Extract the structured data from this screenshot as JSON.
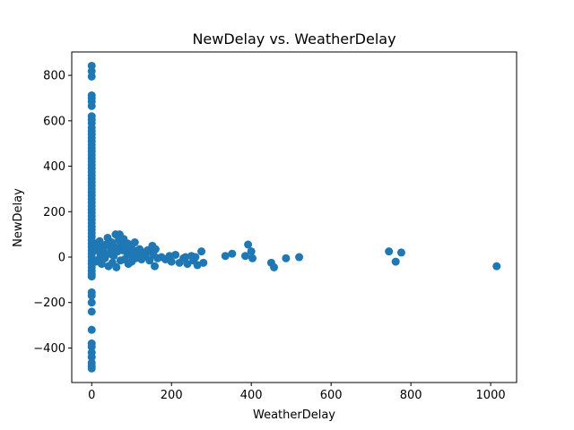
{
  "chart_data": {
    "type": "scatter",
    "title": "NewDelay vs. WeatherDelay",
    "xlabel": "WeatherDelay",
    "ylabel": "NewDelay",
    "xlim": [
      -50,
      1065
    ],
    "ylim": [
      -552,
      903
    ],
    "xticks": [
      0,
      200,
      400,
      600,
      800,
      1000
    ],
    "xtick_labels": [
      "0",
      "200",
      "400",
      "600",
      "800",
      "1000"
    ],
    "yticks": [
      -400,
      -200,
      0,
      200,
      400,
      600,
      800
    ],
    "ytick_labels": [
      "−400",
      "−200",
      "0",
      "200",
      "400",
      "600",
      "800"
    ],
    "grid": false,
    "marker_color": "#1f77b4",
    "points": [
      [
        0,
        842
      ],
      [
        0,
        818
      ],
      [
        0,
        795
      ],
      [
        0,
        712
      ],
      [
        0,
        700
      ],
      [
        0,
        685
      ],
      [
        0,
        665
      ],
      [
        0,
        620
      ],
      [
        0,
        605
      ],
      [
        0,
        590
      ],
      [
        0,
        570
      ],
      [
        0,
        555
      ],
      [
        0,
        540
      ],
      [
        0,
        525
      ],
      [
        0,
        510
      ],
      [
        0,
        495
      ],
      [
        0,
        480
      ],
      [
        0,
        465
      ],
      [
        0,
        450
      ],
      [
        0,
        435
      ],
      [
        0,
        420
      ],
      [
        0,
        405
      ],
      [
        0,
        390
      ],
      [
        0,
        375
      ],
      [
        0,
        360
      ],
      [
        0,
        345
      ],
      [
        0,
        330
      ],
      [
        0,
        315
      ],
      [
        0,
        300
      ],
      [
        0,
        285
      ],
      [
        0,
        270
      ],
      [
        0,
        255
      ],
      [
        0,
        240
      ],
      [
        0,
        225
      ],
      [
        0,
        210
      ],
      [
        0,
        195
      ],
      [
        0,
        180
      ],
      [
        0,
        165
      ],
      [
        0,
        150
      ],
      [
        0,
        135
      ],
      [
        0,
        120
      ],
      [
        0,
        105
      ],
      [
        0,
        90
      ],
      [
        0,
        75
      ],
      [
        0,
        60
      ],
      [
        0,
        45
      ],
      [
        0,
        30
      ],
      [
        0,
        15
      ],
      [
        0,
        0
      ],
      [
        0,
        -15
      ],
      [
        0,
        -30
      ],
      [
        0,
        -45
      ],
      [
        0,
        -60
      ],
      [
        0,
        -75
      ],
      [
        0,
        -85
      ],
      [
        0,
        -155
      ],
      [
        0,
        -170
      ],
      [
        0,
        -200
      ],
      [
        0,
        -240
      ],
      [
        0,
        -320
      ],
      [
        0,
        -380
      ],
      [
        0,
        -395
      ],
      [
        0,
        -420
      ],
      [
        0,
        -440
      ],
      [
        0,
        -465
      ],
      [
        0,
        -480
      ],
      [
        0,
        -490
      ],
      [
        8,
        50
      ],
      [
        10,
        -20
      ],
      [
        12,
        30
      ],
      [
        15,
        60
      ],
      [
        18,
        -10
      ],
      [
        20,
        70
      ],
      [
        22,
        10
      ],
      [
        25,
        -30
      ],
      [
        28,
        40
      ],
      [
        30,
        20
      ],
      [
        33,
        -5
      ],
      [
        36,
        55
      ],
      [
        40,
        85
      ],
      [
        42,
        -40
      ],
      [
        45,
        15
      ],
      [
        48,
        35
      ],
      [
        50,
        65
      ],
      [
        52,
        -25
      ],
      [
        55,
        5
      ],
      [
        58,
        45
      ],
      [
        60,
        100
      ],
      [
        62,
        -45
      ],
      [
        65,
        25
      ],
      [
        68,
        75
      ],
      [
        70,
        100
      ],
      [
        72,
        -15
      ],
      [
        75,
        50
      ],
      [
        78,
        30
      ],
      [
        80,
        80
      ],
      [
        82,
        -10
      ],
      [
        85,
        40
      ],
      [
        88,
        20
      ],
      [
        90,
        60
      ],
      [
        92,
        -30
      ],
      [
        95,
        10
      ],
      [
        98,
        45
      ],
      [
        100,
        -20
      ],
      [
        102,
        25
      ],
      [
        105,
        30
      ],
      [
        108,
        65
      ],
      [
        110,
        -5
      ],
      [
        115,
        15
      ],
      [
        120,
        35
      ],
      [
        125,
        -10
      ],
      [
        130,
        20
      ],
      [
        135,
        5
      ],
      [
        140,
        30
      ],
      [
        145,
        -15
      ],
      [
        150,
        25
      ],
      [
        152,
        50
      ],
      [
        155,
        10
      ],
      [
        158,
        -40
      ],
      [
        160,
        35
      ],
      [
        165,
        -5
      ],
      [
        175,
        0
      ],
      [
        185,
        -10
      ],
      [
        195,
        5
      ],
      [
        200,
        -20
      ],
      [
        210,
        10
      ],
      [
        220,
        -25
      ],
      [
        230,
        -5
      ],
      [
        235,
        0
      ],
      [
        240,
        -30
      ],
      [
        250,
        5
      ],
      [
        255,
        -15
      ],
      [
        260,
        0
      ],
      [
        265,
        -35
      ],
      [
        275,
        25
      ],
      [
        280,
        -25
      ],
      [
        335,
        5
      ],
      [
        352,
        15
      ],
      [
        385,
        5
      ],
      [
        392,
        55
      ],
      [
        400,
        25
      ],
      [
        403,
        -5
      ],
      [
        450,
        -25
      ],
      [
        457,
        -45
      ],
      [
        487,
        -5
      ],
      [
        520,
        0
      ],
      [
        745,
        25
      ],
      [
        762,
        -20
      ],
      [
        776,
        20
      ],
      [
        1015,
        -40
      ]
    ]
  }
}
